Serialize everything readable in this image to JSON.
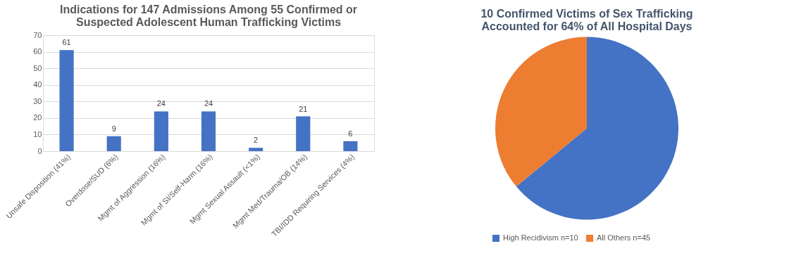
{
  "chart_data": [
    {
      "type": "bar",
      "title": "Indications for 147 Admissions Among 55 Confirmed or\nSuspected Adolescent Human Trafficking Victims",
      "categories": [
        "Unsafe Disposition (41%)",
        "Overdose/SUD (6%)",
        "Mgmt of Aggression (16%)",
        "Mgmt of SI/Self-Harm (16%)",
        "Mgmt Sexual Assault (<1%)",
        "Mgmt Med/Trauma/OB (14%)",
        "TBI/IDD Requiring Services (4%)"
      ],
      "values": [
        61,
        9,
        24,
        24,
        2,
        21,
        6
      ],
      "color": "#4472c4",
      "ylim": [
        0,
        70
      ],
      "yticks": [
        0,
        10,
        20,
        30,
        40,
        50,
        60,
        70
      ],
      "grid": "y",
      "data_labels": true
    },
    {
      "type": "pie",
      "title": "10 Confirmed Victims of Sex Trafficking\nAccounted for 64% of All Hospital Days",
      "categories": [
        "High Recidivism n=10",
        "All Others n=45"
      ],
      "values": [
        64,
        36
      ],
      "colors": [
        "#4472c4",
        "#ed7d31"
      ],
      "legend": "bottom"
    }
  ]
}
